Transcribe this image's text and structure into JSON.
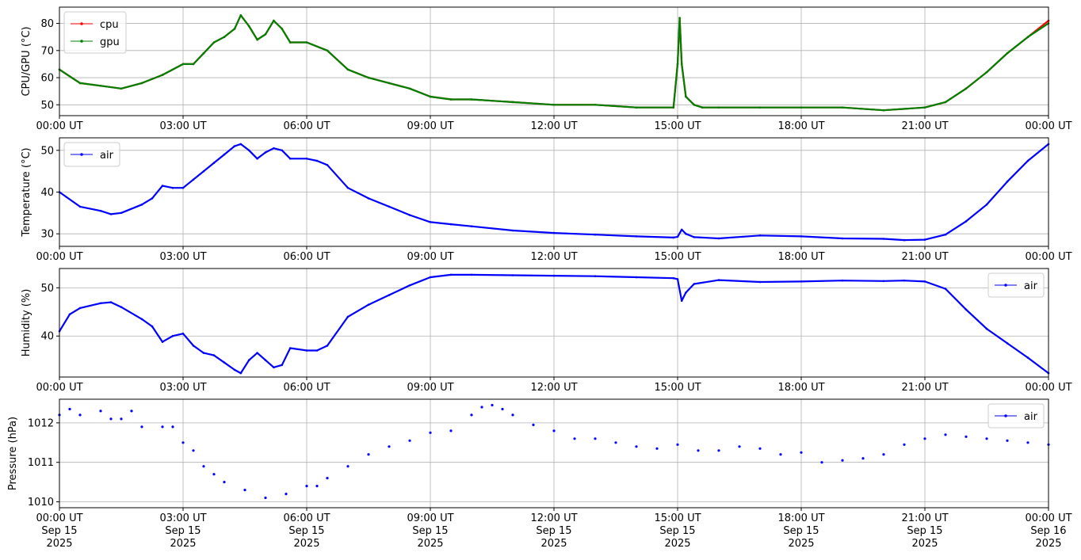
{
  "chart_data": [
    {
      "type": "line",
      "ylabel": "CPU/GPU (°C)",
      "ylim": [
        46,
        86
      ],
      "yticks": [
        50,
        60,
        70,
        80
      ],
      "xlim": [
        0,
        24
      ],
      "xticks": [
        "00:00 UT",
        "03:00 UT",
        "06:00 UT",
        "09:00 UT",
        "12:00 UT",
        "15:00 UT",
        "18:00 UT",
        "21:00 UT",
        "00:00 UT"
      ],
      "grid": true,
      "legend_position": "top-left",
      "series": [
        {
          "name": "cpu",
          "color": "#ff0000",
          "x": [
            0,
            0.5,
            1,
            1.5,
            2,
            2.5,
            3,
            3.25,
            3.5,
            3.75,
            4,
            4.25,
            4.4,
            4.6,
            4.8,
            5,
            5.2,
            5.4,
            5.6,
            6,
            6.5,
            7,
            7.5,
            8,
            8.5,
            9,
            9.5,
            10,
            11,
            12,
            13,
            14,
            14.9,
            15,
            15.05,
            15.1,
            15.2,
            15.4,
            15.6,
            16,
            17,
            18,
            19,
            20,
            21,
            21.5,
            22,
            22.5,
            23,
            23.5,
            24
          ],
          "y": [
            63,
            58,
            57,
            56,
            58,
            61,
            65,
            65,
            69,
            73,
            75,
            78,
            83,
            79,
            74,
            76,
            81,
            78,
            73,
            73,
            70,
            63,
            60,
            58,
            56,
            53,
            52,
            52,
            51,
            50,
            50,
            49,
            49,
            65,
            82,
            65,
            53,
            50,
            49,
            49,
            49,
            49,
            49,
            48,
            49,
            51,
            56,
            62,
            69,
            75,
            81
          ]
        },
        {
          "name": "gpu",
          "color": "#008000",
          "x": [
            0,
            0.5,
            1,
            1.5,
            2,
            2.5,
            3,
            3.25,
            3.5,
            3.75,
            4,
            4.25,
            4.4,
            4.6,
            4.8,
            5,
            5.2,
            5.4,
            5.6,
            6,
            6.5,
            7,
            7.5,
            8,
            8.5,
            9,
            9.5,
            10,
            11,
            12,
            13,
            14,
            14.9,
            15,
            15.05,
            15.1,
            15.2,
            15.4,
            15.6,
            16,
            17,
            18,
            19,
            20,
            21,
            21.5,
            22,
            22.5,
            23,
            23.5,
            24
          ],
          "y": [
            63,
            58,
            57,
            56,
            58,
            61,
            65,
            65,
            69,
            73,
            75,
            78,
            83,
            79,
            74,
            76,
            81,
            78,
            73,
            73,
            70,
            63,
            60,
            58,
            56,
            53,
            52,
            52,
            51,
            50,
            50,
            49,
            49,
            65,
            82,
            65,
            53,
            50,
            49,
            49,
            49,
            49,
            49,
            48,
            49,
            51,
            56,
            62,
            69,
            75,
            80
          ]
        }
      ]
    },
    {
      "type": "line",
      "ylabel": "Temperature (°C)",
      "ylim": [
        27,
        53
      ],
      "yticks": [
        30,
        40,
        50
      ],
      "xlim": [
        0,
        24
      ],
      "xticks": [
        "00:00 UT",
        "03:00 UT",
        "06:00 UT",
        "09:00 UT",
        "12:00 UT",
        "15:00 UT",
        "18:00 UT",
        "21:00 UT",
        "00:00 UT"
      ],
      "grid": true,
      "legend_position": "top-left",
      "series": [
        {
          "name": "air",
          "color": "#0000ff",
          "x": [
            0,
            0.5,
            1,
            1.25,
            1.5,
            2,
            2.25,
            2.5,
            2.75,
            3,
            3.25,
            3.5,
            3.75,
            4,
            4.25,
            4.4,
            4.6,
            4.8,
            5,
            5.2,
            5.4,
            5.6,
            6,
            6.25,
            6.5,
            7,
            7.5,
            8,
            8.5,
            9,
            9.5,
            10,
            11,
            12,
            13,
            14,
            14.9,
            15,
            15.1,
            15.2,
            15.4,
            16,
            17,
            18,
            19,
            20,
            20.5,
            21,
            21.5,
            22,
            22.5,
            23,
            23.5,
            24
          ],
          "y": [
            40,
            36.5,
            35.5,
            34.7,
            35,
            37,
            38.5,
            41.5,
            41,
            41,
            43,
            45,
            47,
            49,
            51,
            51.5,
            50,
            48,
            49.5,
            50.5,
            50,
            48,
            48,
            47.5,
            46.5,
            41,
            38.5,
            36.5,
            34.5,
            32.8,
            32.3,
            31.8,
            30.8,
            30.2,
            29.8,
            29.4,
            29.1,
            29.3,
            31,
            30,
            29.2,
            28.9,
            29.6,
            29.4,
            28.9,
            28.8,
            28.5,
            28.6,
            29.8,
            33,
            37,
            42.5,
            47.5,
            51.5
          ]
        }
      ]
    },
    {
      "type": "line",
      "ylabel": "Humidity (%)",
      "ylim": [
        31.5,
        54
      ],
      "yticks": [
        40,
        50
      ],
      "xlim": [
        0,
        24
      ],
      "xticks": [
        "00:00 UT",
        "03:00 UT",
        "06:00 UT",
        "09:00 UT",
        "12:00 UT",
        "15:00 UT",
        "18:00 UT",
        "21:00 UT",
        "00:00 UT"
      ],
      "grid": true,
      "legend_position": "top-right",
      "series": [
        {
          "name": "air",
          "color": "#0000ff",
          "x": [
            0,
            0.25,
            0.5,
            1,
            1.25,
            1.5,
            2,
            2.25,
            2.5,
            2.75,
            3,
            3.25,
            3.5,
            3.75,
            4,
            4.25,
            4.4,
            4.6,
            4.8,
            5,
            5.2,
            5.4,
            5.6,
            6,
            6.25,
            6.5,
            7,
            7.5,
            8,
            8.5,
            9,
            9.5,
            10,
            11,
            12,
            13,
            14,
            14.9,
            15,
            15.1,
            15.2,
            15.4,
            16,
            17,
            18,
            19,
            20,
            20.5,
            21,
            21.5,
            22,
            22.5,
            23,
            23.5,
            24
          ],
          "y": [
            41,
            44.5,
            45.8,
            46.8,
            47,
            46,
            43.5,
            42,
            38.8,
            40,
            40.5,
            38,
            36.5,
            36,
            34.5,
            33,
            32.3,
            35,
            36.5,
            35,
            33.5,
            34,
            37.5,
            37,
            37,
            38,
            44,
            46.5,
            48.5,
            50.5,
            52.2,
            52.7,
            52.7,
            52.6,
            52.5,
            52.4,
            52.2,
            52,
            51.8,
            47.3,
            49,
            50.8,
            51.6,
            51.2,
            51.3,
            51.5,
            51.4,
            51.5,
            51.3,
            49.8,
            45.5,
            41.5,
            38.5,
            35.5,
            32.3
          ]
        }
      ]
    },
    {
      "type": "scatter",
      "ylabel": "Pressure (hPa)",
      "ylim": [
        1009.85,
        1012.6
      ],
      "yticks": [
        1010,
        1011,
        1012
      ],
      "xlim": [
        0,
        24
      ],
      "xticks": [
        "00:00 UT\nSep 15\n2025",
        "03:00 UT\nSep 15\n2025",
        "06:00 UT\nSep 15\n2025",
        "09:00 UT\nSep 15\n2025",
        "12:00 UT\nSep 15\n2025",
        "15:00 UT\nSep 15\n2025",
        "18:00 UT\nSep 15\n2025",
        "21:00 UT\nSep 15\n2025",
        "00:00 UT\nSep 16\n2025"
      ],
      "grid": true,
      "legend_position": "top-right",
      "series": [
        {
          "name": "air",
          "color": "#0000ff",
          "x": [
            0,
            0.25,
            0.5,
            1,
            1.25,
            1.5,
            1.75,
            2,
            2.5,
            2.75,
            3,
            3.25,
            3.5,
            3.75,
            4,
            4.5,
            5,
            5.5,
            6,
            6.25,
            6.5,
            7,
            7.5,
            8,
            8.5,
            9,
            9.5,
            10,
            10.25,
            10.5,
            10.75,
            11,
            11.5,
            12,
            12.5,
            13,
            13.5,
            14,
            14.5,
            15,
            15.5,
            16,
            16.5,
            17,
            17.5,
            18,
            18.5,
            19,
            19.5,
            20,
            20.5,
            21,
            21.5,
            22,
            22.5,
            23,
            23.5,
            24
          ],
          "y": [
            1012.2,
            1012.35,
            1012.2,
            1012.3,
            1012.1,
            1012.1,
            1012.3,
            1011.9,
            1011.9,
            1011.9,
            1011.5,
            1011.3,
            1010.9,
            1010.7,
            1010.5,
            1010.3,
            1010.1,
            1010.2,
            1010.4,
            1010.4,
            1010.6,
            1010.9,
            1011.2,
            1011.4,
            1011.55,
            1011.75,
            1011.8,
            1012.2,
            1012.4,
            1012.45,
            1012.35,
            1012.2,
            1011.95,
            1011.8,
            1011.6,
            1011.6,
            1011.5,
            1011.4,
            1011.35,
            1011.45,
            1011.3,
            1011.3,
            1011.4,
            1011.35,
            1011.2,
            1011.25,
            1011.0,
            1011.05,
            1011.1,
            1011.2,
            1011.45,
            1011.6,
            1011.7,
            1011.65,
            1011.6,
            1011.55,
            1011.5,
            1011.45
          ]
        }
      ]
    }
  ]
}
